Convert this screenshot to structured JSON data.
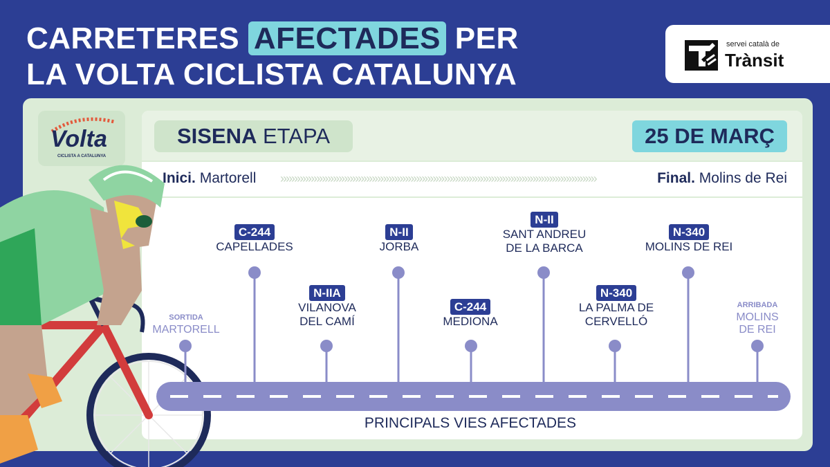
{
  "header": {
    "title_part1": "CARRETERES",
    "title_highlight": "AFECTADES",
    "title_part2": "PER",
    "title_line2": "LA VOLTA CICLISTA CATALUNYA"
  },
  "logo": {
    "small_text": "servei català de",
    "big_text": "Trànsit",
    "icon": "transit-logo-icon"
  },
  "volta_logo": {
    "word": "Volta",
    "subtitle": "CICLISTA A CATALUNYA"
  },
  "stage": {
    "number_bold": "SISENA",
    "label": "ETAPA",
    "date": "25 DE MARÇ"
  },
  "route": {
    "start_prefix": "Inici.",
    "start_city": "Martorell",
    "end_prefix": "Final.",
    "end_city": "Molins de Rei"
  },
  "endpoints": {
    "start_tag": "SORTIDA",
    "start_city": "MARTORELL",
    "end_tag": "ARRIBADA",
    "end_city_line1": "MOLINS",
    "end_city_line2": "DE REI"
  },
  "stops": [
    {
      "road": "C-244",
      "line1": "CAPELLADES",
      "line2": ""
    },
    {
      "road": "N-IIA",
      "line1": "VILANOVA",
      "line2": "DEL CAMÍ"
    },
    {
      "road": "N-II",
      "line1": "JORBA",
      "line2": ""
    },
    {
      "road": "C-244",
      "line1": "MEDIONA",
      "line2": ""
    },
    {
      "road": "N-II",
      "line1": "SANT ANDREU",
      "line2": "DE LA BARCA"
    },
    {
      "road": "N-340",
      "line1": "LA PALMA DE",
      "line2": "CERVELLÓ"
    },
    {
      "road": "N-340",
      "line1": "MOLINS DE REI",
      "line2": ""
    }
  ],
  "caption": "PRINCIPALS VIES AFECTADES",
  "colors": {
    "background": "#2c3e94",
    "highlight": "#7fd6de",
    "panel": "#dcecd7",
    "road": "#8a8cc8"
  }
}
